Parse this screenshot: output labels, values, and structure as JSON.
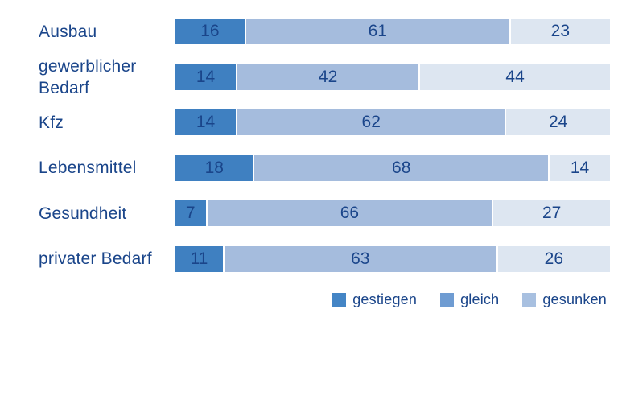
{
  "chart_data": {
    "type": "bar",
    "subtype": "horizontal-stacked",
    "title": "",
    "xlabel": "",
    "ylabel": "",
    "x_range": [
      0,
      100
    ],
    "grid": false,
    "value_labels": "inside-center",
    "legend_position": "bottom-right",
    "categories": [
      "Ausbau",
      "gewerblicher Bedarf",
      "Kfz",
      "Lebensmittel",
      "Gesundheit",
      "privater Bedarf"
    ],
    "series": [
      {
        "name": "gestiegen",
        "values": [
          16,
          14,
          14,
          18,
          7,
          11
        ],
        "bar_color": "#3f80c1",
        "legend_color": "#4485c5"
      },
      {
        "name": "gleich",
        "values": [
          61,
          42,
          62,
          68,
          66,
          63
        ],
        "bar_color": "#a5bcdd",
        "legend_color": "#6f9cd2"
      },
      {
        "name": "gesunken",
        "values": [
          23,
          44,
          24,
          14,
          27,
          26
        ],
        "bar_color": "#dde6f1",
        "legend_color": "#a8c0e0"
      }
    ],
    "colors": {
      "text": "#1a458a",
      "background": "#ffffff",
      "segment_separator": "#ffffff"
    }
  }
}
